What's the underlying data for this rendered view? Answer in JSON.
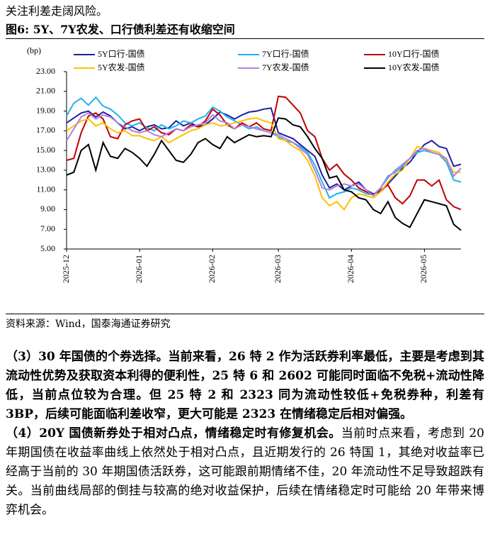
{
  "intro": "关注利差走阔风险。",
  "figure_title": "图6: 5Y、7Y农发、口行债利差还有收缩空间",
  "chart_data": {
    "type": "line",
    "y_unit": "(bp)",
    "categories": [
      "2025-12",
      null,
      null,
      null,
      null,
      null,
      null,
      null,
      null,
      null,
      "2026-01",
      null,
      null,
      null,
      null,
      null,
      null,
      null,
      null,
      null,
      "2026-02",
      null,
      null,
      null,
      null,
      null,
      null,
      null,
      null,
      "2026-03",
      null,
      null,
      null,
      null,
      null,
      null,
      null,
      null,
      null,
      "2026-04",
      null,
      null,
      null,
      null,
      null,
      null,
      null,
      null,
      null,
      "2026-05",
      null,
      null,
      null,
      null,
      null
    ],
    "ylim": [
      5,
      23
    ],
    "yticks": [
      {
        "value": 5,
        "label": "5.00"
      },
      {
        "value": 7,
        "label": "7.00"
      },
      {
        "value": 9,
        "label": "9.00"
      },
      {
        "value": 11,
        "label": "11.00"
      },
      {
        "value": 13,
        "label": "13.00"
      },
      {
        "value": 15,
        "label": "15.00"
      },
      {
        "value": 17,
        "label": "17.00"
      },
      {
        "value": 19,
        "label": "19.00"
      },
      {
        "value": 21,
        "label": "21.00"
      },
      {
        "value": 23,
        "label": "23.00"
      }
    ],
    "grid": false,
    "series": [
      {
        "name": "5Y口行-国债",
        "color": "#1f1f9f",
        "values": [
          17.8,
          18.3,
          18.8,
          19.0,
          18.4,
          18.9,
          18.5,
          17.8,
          17.2,
          17.4,
          17.0,
          17.4,
          17.6,
          17.2,
          17.3,
          18.0,
          17.5,
          17.8,
          17.4,
          17.6,
          18.2,
          18.9,
          18.6,
          18.2,
          18.6,
          18.9,
          19.0,
          19.2,
          19.3,
          16.8,
          16.5,
          16.2,
          15.6,
          15.0,
          14.4,
          12.5,
          11.2,
          11.6,
          11.0,
          11.4,
          11.8,
          11.0,
          10.6,
          10.8,
          11.6,
          12.4,
          13.2,
          13.8,
          14.8,
          15.6,
          16.0,
          15.4,
          15.2,
          13.4,
          13.6
        ]
      },
      {
        "name": "7Y口行-国债",
        "color": "#1fb2ef",
        "values": [
          18.5,
          19.8,
          20.3,
          19.6,
          20.4,
          19.5,
          19.2,
          18.6,
          17.8,
          17.5,
          17.8,
          17.3,
          17.0,
          17.6,
          17.2,
          17.5,
          18.0,
          17.8,
          18.2,
          18.5,
          19.4,
          19.0,
          18.4,
          18.0,
          17.6,
          17.2,
          17.4,
          17.0,
          16.8,
          16.4,
          16.0,
          15.8,
          15.4,
          14.8,
          13.5,
          11.8,
          10.2,
          10.6,
          10.8,
          11.2,
          11.0,
          10.6,
          10.5,
          11.2,
          12.4,
          12.8,
          13.4,
          14.2,
          14.8,
          15.0,
          14.8,
          14.6,
          13.8,
          12.0,
          11.8
        ]
      },
      {
        "name": "10Y口行-国债",
        "color": "#c00000",
        "values": [
          14.0,
          14.2,
          16.8,
          18.5,
          18.8,
          18.2,
          16.4,
          16.2,
          17.6,
          18.0,
          18.2,
          17.0,
          17.4,
          16.8,
          16.6,
          17.2,
          17.0,
          17.6,
          17.4,
          18.0,
          19.2,
          18.6,
          17.6,
          17.2,
          17.8,
          17.4,
          17.8,
          17.2,
          17.0,
          20.5,
          20.4,
          19.6,
          18.8,
          17.0,
          16.4,
          14.2,
          13.0,
          13.6,
          12.6,
          12.0,
          11.2,
          10.8,
          10.5,
          11.0,
          11.5,
          10.2,
          9.6,
          10.4,
          12.0,
          12.0,
          11.4,
          12.0,
          10.0,
          9.3,
          9.0
        ]
      },
      {
        "name": "5Y农发-国债",
        "color": "#ffc000",
        "values": [
          17.0,
          17.5,
          18.0,
          18.2,
          17.5,
          17.8,
          17.2,
          16.8,
          17.0,
          16.5,
          16.5,
          16.2,
          16.0,
          16.4,
          15.8,
          16.2,
          16.6,
          17.0,
          17.2,
          17.6,
          17.8,
          17.5,
          17.6,
          17.8,
          18.0,
          18.2,
          18.3,
          18.0,
          17.8,
          16.2,
          16.0,
          15.4,
          15.0,
          14.0,
          12.4,
          10.2,
          9.4,
          9.8,
          9.0,
          10.2,
          10.6,
          10.4,
          10.2,
          10.8,
          11.8,
          12.6,
          13.0,
          14.2,
          15.4,
          15.2,
          15.0,
          14.8,
          14.0,
          12.8,
          12.8
        ]
      },
      {
        "name": "7Y农发-国债",
        "color": "#b580e0",
        "values": [
          16.0,
          17.2,
          18.4,
          18.8,
          18.2,
          18.6,
          18.4,
          17.8,
          17.4,
          17.0,
          16.8,
          17.0,
          16.6,
          16.4,
          16.8,
          17.2,
          17.0,
          17.4,
          17.6,
          17.8,
          18.6,
          18.0,
          17.8,
          17.2,
          17.6,
          17.4,
          17.2,
          17.0,
          16.8,
          16.6,
          16.2,
          15.8,
          15.2,
          14.6,
          13.0,
          11.2,
          11.0,
          11.4,
          11.6,
          11.4,
          11.6,
          11.0,
          10.4,
          11.2,
          12.2,
          13.0,
          13.6,
          14.2,
          15.0,
          15.2,
          14.8,
          14.6,
          14.2,
          12.4,
          13.2
        ]
      },
      {
        "name": "10Y农发-国债",
        "color": "#000000",
        "values": [
          12.5,
          12.8,
          15.0,
          15.6,
          13.0,
          15.8,
          14.4,
          14.2,
          15.2,
          14.8,
          14.2,
          13.4,
          14.6,
          16.0,
          15.0,
          14.0,
          13.8,
          14.6,
          15.8,
          16.2,
          15.6,
          15.2,
          16.4,
          15.8,
          16.2,
          16.6,
          16.4,
          16.5,
          16.4,
          18.3,
          18.2,
          17.6,
          17.4,
          16.4,
          15.2,
          14.2,
          12.2,
          12.4,
          11.0,
          10.8,
          10.2,
          10.0,
          9.0,
          8.6,
          9.8,
          8.2,
          7.6,
          7.2,
          8.6,
          10.0,
          9.8,
          9.6,
          9.4,
          7.5,
          6.9
        ]
      }
    ]
  },
  "source": "资料来源：Wind，国泰海通证券研究",
  "paragraphs": [
    {
      "bold": "（3）30 年国债的个券选择。当前来看，26 特 2 作为活跃券利率最低，主要是考虑到其流动性优势及获取资本利得的便利性，25 特 6 和 2602 可能同时面临不免税+流动性降低，当前点位较为合理。但 25 特 2 和 2323 同为流动性较低+免税券种，利差有 3BP，后续可能面临利差收窄，更大可能是 2323 在情绪稳定后相对偏强。"
    },
    {
      "bold": "（4）20Y 国债新券处于相对凸点，情绪稳定时有修复机会。",
      "text": "当前时点来看，考虑到 20 年期国债在收益率曲线上依然处于相对凸点，且近期发行的 26 特国 1，其绝对收益率已经高于当前的 30 年期国债活跃券，这可能跟前期情绪不佳，20 年流动性不足导致超跌有关。当前曲线局部的倒挂与较高的绝对收益保护，后续在情绪稳定时可能给 20 年带来博弈机会。"
    }
  ]
}
